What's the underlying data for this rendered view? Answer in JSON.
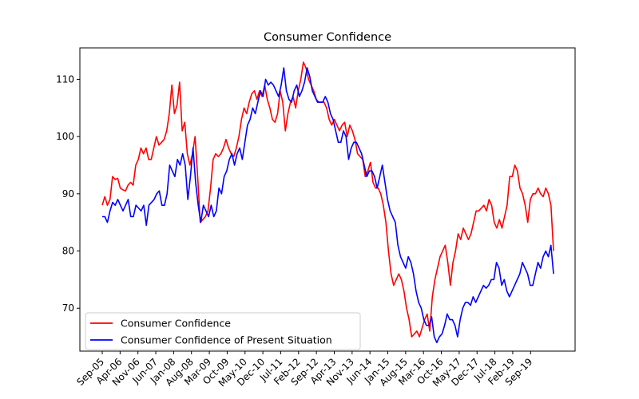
{
  "chart_data": {
    "type": "line",
    "title": "Consumer Confidence",
    "xlabel": "",
    "ylabel": "",
    "ylim": [
      62.5,
      115.5
    ],
    "yticks": [
      70,
      80,
      90,
      100,
      110
    ],
    "x_tick_labels": [
      "Sep-05",
      "Apr-06",
      "Nov-06",
      "Jun-07",
      "Jan-08",
      "Aug-08",
      "Mar-09",
      "Oct-09",
      "May-10",
      "Dec-10",
      "Jul-11",
      "Feb-12",
      "Sep-12",
      "Apr-13",
      "Nov-13",
      "Jun-14",
      "Jan-15",
      "Aug-15",
      "Mar-16",
      "Oct-16",
      "May-17",
      "Dec-17",
      "Jul-18",
      "Feb-19",
      "Sep-19"
    ],
    "x_start": "Sep-05",
    "x_end": "Jun-20",
    "legend_position": "lower-left",
    "grid": false,
    "series": [
      {
        "name": "Consumer Confidence",
        "color": "#ff0000",
        "values": [
          88,
          89.5,
          88,
          89,
          93,
          92.5,
          92.7,
          91,
          90.7,
          90.5,
          91.5,
          92,
          91.5,
          95,
          96,
          98,
          97,
          98,
          96,
          96,
          98,
          100,
          98.5,
          99,
          99.5,
          101,
          104,
          109,
          104,
          105.5,
          109.5,
          101,
          102.5,
          97,
          95,
          97,
          100,
          93,
          85,
          85.5,
          86,
          87,
          91,
          96,
          97,
          96.5,
          97,
          98,
          99.5,
          98,
          97,
          96.5,
          98,
          100,
          103,
          105,
          104,
          106,
          107.5,
          108,
          106.5,
          108,
          107,
          109,
          106.5,
          105,
          103,
          102.5,
          104,
          108,
          106,
          101,
          104,
          106,
          107,
          105,
          108,
          110,
          113,
          112,
          110,
          109,
          108,
          106.5,
          106,
          106,
          106,
          105,
          103,
          102,
          103,
          102,
          101,
          102,
          102.5,
          100,
          102,
          101,
          99.5,
          97,
          96.5,
          96,
          93,
          94,
          95.5,
          92,
          91,
          91,
          90,
          88,
          85,
          80,
          76,
          74,
          75,
          76,
          75,
          73,
          70,
          68,
          65,
          65.5,
          66,
          65,
          66.5,
          68,
          69,
          66,
          72,
          75,
          77,
          79,
          80,
          81,
          78,
          74,
          78,
          80,
          83,
          82,
          84,
          83,
          82,
          83,
          85,
          87,
          87,
          87.5,
          88,
          87,
          89,
          88,
          85,
          84,
          85.5,
          84,
          86,
          88,
          93,
          93,
          95,
          94,
          91,
          90,
          88,
          85,
          89,
          90,
          90,
          91,
          90,
          89.5,
          91,
          90,
          88,
          80
        ]
      },
      {
        "name": "Consumer Confidence of Present Situation",
        "color": "#0000ff",
        "values": [
          86,
          86,
          85,
          87,
          88.5,
          88,
          89,
          88,
          87,
          88,
          89,
          86,
          86,
          88,
          87.5,
          87,
          88,
          84.5,
          88,
          88.5,
          89,
          90,
          90.5,
          88,
          88,
          90,
          95,
          94,
          93,
          96,
          95,
          97,
          95,
          89,
          93,
          98,
          92,
          88,
          85,
          88,
          87,
          86,
          88,
          86,
          87,
          91,
          90,
          93,
          94,
          96,
          97,
          95,
          97,
          98,
          96,
          99,
          102,
          103,
          105,
          104,
          106,
          108,
          107,
          110,
          109,
          109.5,
          109,
          108,
          107,
          109,
          112,
          108,
          106.5,
          106,
          108,
          109,
          107,
          108,
          109.5,
          112,
          110.5,
          108,
          107,
          106,
          106,
          106,
          107,
          106,
          104,
          103,
          101,
          99,
          99,
          101,
          100,
          96,
          98,
          99,
          99,
          98,
          97,
          95,
          93,
          94,
          94,
          93,
          91,
          93,
          95,
          92,
          89,
          87,
          86,
          85,
          81,
          79,
          78,
          77,
          79,
          78,
          76,
          73,
          71,
          70,
          68,
          67,
          67,
          68.5,
          65,
          64,
          65,
          65.5,
          67,
          69,
          68,
          68,
          67,
          65,
          68,
          70,
          71,
          71,
          70.5,
          72,
          71,
          72,
          73,
          74,
          73.5,
          74,
          75,
          75,
          78,
          77,
          74,
          75,
          73,
          72,
          73,
          74,
          75,
          76,
          78,
          77,
          76,
          74,
          74,
          76,
          78,
          77,
          79,
          80,
          79,
          81,
          76
        ]
      }
    ]
  }
}
